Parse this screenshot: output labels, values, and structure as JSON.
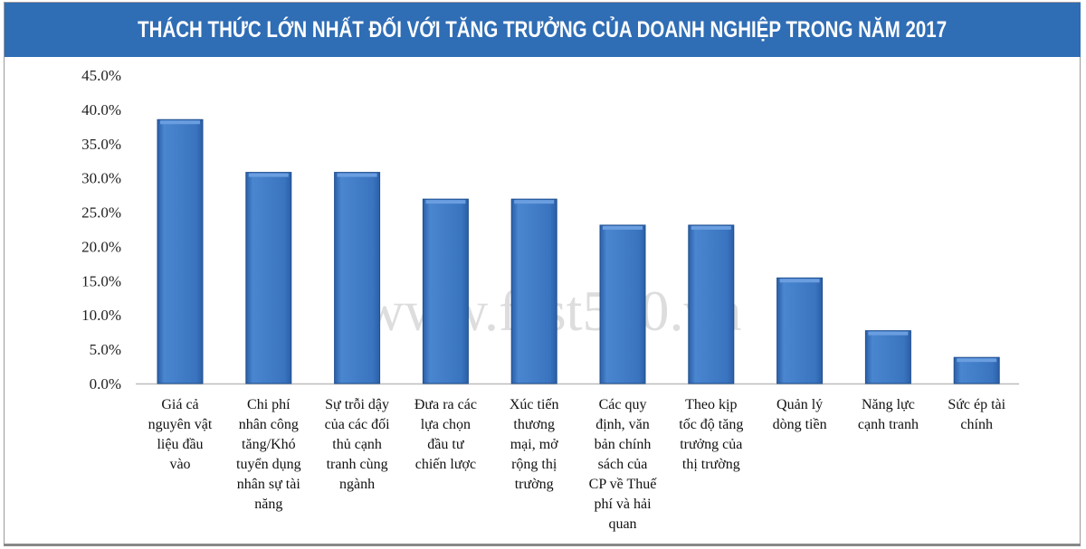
{
  "title": "THÁCH THỨC LỚN NHẤT ĐỐI VỚI TĂNG TRƯỞNG CỦA DOANH NGHIỆP TRONG NĂM 2017",
  "watermark": "www.fast500.vn",
  "colors": {
    "banner": "#2f6db5",
    "bar": "#3a74bf",
    "bar_edge": "#1f4f8f"
  },
  "chart_data": {
    "type": "bar",
    "title": "THÁCH THỨC LỚN NHẤT ĐỐI VỚI TĂNG TRƯỞNG CỦA DOANH NGHIỆP TRONG NĂM 2017",
    "xlabel": "",
    "ylabel": "",
    "ylim": [
      0,
      45
    ],
    "y_ticks": [
      "0.0%",
      "5.0%",
      "10.0%",
      "15.0%",
      "20.0%",
      "25.0%",
      "30.0%",
      "35.0%",
      "40.0%",
      "45.0%"
    ],
    "grid": false,
    "legend": "none",
    "categories": [
      [
        "Giá cả",
        "nguyên vật",
        "liệu đầu",
        "vào"
      ],
      [
        "Chi phí",
        "nhân công",
        "tăng/Khó",
        "tuyển dụng",
        "nhân sự tài",
        "năng"
      ],
      [
        "Sự trỗi dậy",
        "của các đối",
        "thủ cạnh",
        "tranh cùng",
        "ngành"
      ],
      [
        "Đưa ra các",
        "lựa chọn",
        "đầu tư",
        "chiến lược"
      ],
      [
        "Xúc tiến",
        "thương",
        "mại, mở",
        "rộng thị",
        "trường"
      ],
      [
        "Các quy",
        "định, văn",
        "bản chính",
        "sách của",
        "CP về Thuế",
        "phí và hải",
        "quan"
      ],
      [
        "Theo kịp",
        "tốc độ tăng",
        "trưởng của",
        "thị trường"
      ],
      [
        "Quản lý",
        "dòng tiền"
      ],
      [
        "Năng lực",
        "cạnh tranh"
      ],
      [
        "Sức ép tài",
        "chính"
      ]
    ],
    "values": [
      38.5,
      30.8,
      30.8,
      26.9,
      26.9,
      23.1,
      23.1,
      15.4,
      7.7,
      3.8
    ]
  }
}
